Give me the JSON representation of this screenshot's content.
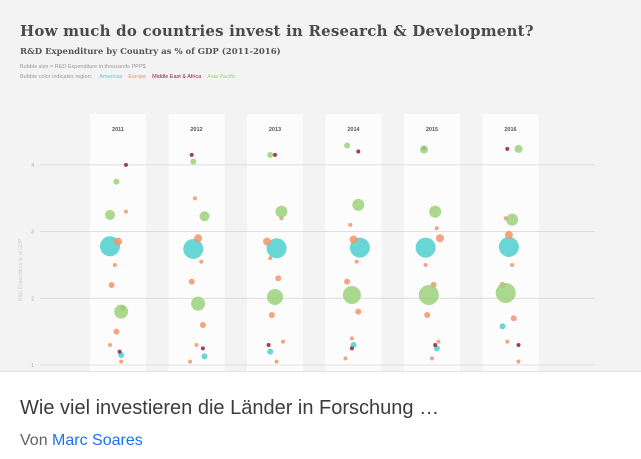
{
  "card": {
    "title": "Wie viel investieren die Länder in Forschung …",
    "author_prefix": "Von",
    "author_name": "Marc Soares"
  },
  "chart_data": {
    "type": "scatter",
    "title": "How much do countries invest in Research & Development?",
    "subtitle": "R&D Expenditure by Country as % of GDP (2011-2016)",
    "note": "Bubble size = R&D Expenditure in thousands PPP$",
    "legend_label": "Bubble color indicates region:",
    "ylabel": "R&D Expenditure % of GDP",
    "categories": [
      "2011",
      "2012",
      "2013",
      "2014",
      "2015",
      "2016"
    ],
    "y_ticks": [
      1,
      2,
      3,
      4
    ],
    "ylim": [
      0.9,
      4.6
    ],
    "grid": true,
    "regions": [
      {
        "name": "Americas",
        "color": "#4fcfcf"
      },
      {
        "name": "Europe",
        "color": "#f0956a"
      },
      {
        "name": "Middle East & Africa",
        "color": "#8b1e3f"
      },
      {
        "name": "Asia Pacific",
        "color": "#9bd17a"
      }
    ],
    "series": [
      {
        "name": "Americas",
        "points": [
          {
            "x": "2011",
            "y": 2.78,
            "size": 10
          },
          {
            "x": "2011",
            "y": 1.15,
            "size": 3
          },
          {
            "x": "2012",
            "y": 2.74,
            "size": 10
          },
          {
            "x": "2012",
            "y": 1.13,
            "size": 3
          },
          {
            "x": "2013",
            "y": 2.75,
            "size": 10
          },
          {
            "x": "2013",
            "y": 1.2,
            "size": 3
          },
          {
            "x": "2014",
            "y": 2.76,
            "size": 10
          },
          {
            "x": "2014",
            "y": 1.3,
            "size": 3
          },
          {
            "x": "2015",
            "y": 2.76,
            "size": 10
          },
          {
            "x": "2015",
            "y": 1.25,
            "size": 3
          },
          {
            "x": "2016",
            "y": 2.77,
            "size": 10
          },
          {
            "x": "2016",
            "y": 1.58,
            "size": 3
          }
        ]
      },
      {
        "name": "Europe",
        "points": [
          {
            "x": "2011",
            "y": 2.85,
            "size": 4
          },
          {
            "x": "2011",
            "y": 2.2,
            "size": 3
          },
          {
            "x": "2011",
            "y": 1.85,
            "size": 3
          },
          {
            "x": "2011",
            "y": 1.5,
            "size": 3
          },
          {
            "x": "2011",
            "y": 1.3,
            "size": 2
          },
          {
            "x": "2011",
            "y": 1.05,
            "size": 2
          },
          {
            "x": "2011",
            "y": 2.5,
            "size": 2
          },
          {
            "x": "2011",
            "y": 3.3,
            "size": 2
          },
          {
            "x": "2012",
            "y": 2.9,
            "size": 4
          },
          {
            "x": "2012",
            "y": 2.25,
            "size": 3
          },
          {
            "x": "2012",
            "y": 1.6,
            "size": 3
          },
          {
            "x": "2012",
            "y": 1.3,
            "size": 2
          },
          {
            "x": "2012",
            "y": 1.05,
            "size": 2
          },
          {
            "x": "2012",
            "y": 2.55,
            "size": 2
          },
          {
            "x": "2012",
            "y": 3.5,
            "size": 2
          },
          {
            "x": "2013",
            "y": 2.85,
            "size": 4
          },
          {
            "x": "2013",
            "y": 2.3,
            "size": 3
          },
          {
            "x": "2013",
            "y": 1.75,
            "size": 3
          },
          {
            "x": "2013",
            "y": 1.35,
            "size": 2
          },
          {
            "x": "2013",
            "y": 1.05,
            "size": 2
          },
          {
            "x": "2013",
            "y": 2.6,
            "size": 2
          },
          {
            "x": "2013",
            "y": 3.2,
            "size": 2
          },
          {
            "x": "2014",
            "y": 2.88,
            "size": 4
          },
          {
            "x": "2014",
            "y": 2.25,
            "size": 3
          },
          {
            "x": "2014",
            "y": 1.8,
            "size": 3
          },
          {
            "x": "2014",
            "y": 1.4,
            "size": 2
          },
          {
            "x": "2014",
            "y": 1.1,
            "size": 2
          },
          {
            "x": "2014",
            "y": 2.55,
            "size": 2
          },
          {
            "x": "2014",
            "y": 3.1,
            "size": 2
          },
          {
            "x": "2015",
            "y": 2.9,
            "size": 4
          },
          {
            "x": "2015",
            "y": 2.2,
            "size": 3
          },
          {
            "x": "2015",
            "y": 1.75,
            "size": 3
          },
          {
            "x": "2015",
            "y": 1.35,
            "size": 2
          },
          {
            "x": "2015",
            "y": 1.1,
            "size": 2
          },
          {
            "x": "2015",
            "y": 2.5,
            "size": 2
          },
          {
            "x": "2015",
            "y": 3.05,
            "size": 2
          },
          {
            "x": "2016",
            "y": 2.95,
            "size": 4
          },
          {
            "x": "2016",
            "y": 2.2,
            "size": 3
          },
          {
            "x": "2016",
            "y": 1.7,
            "size": 3
          },
          {
            "x": "2016",
            "y": 1.35,
            "size": 2
          },
          {
            "x": "2016",
            "y": 1.05,
            "size": 2
          },
          {
            "x": "2016",
            "y": 2.5,
            "size": 2
          },
          {
            "x": "2016",
            "y": 3.2,
            "size": 2
          }
        ]
      },
      {
        "name": "Middle East & Africa",
        "points": [
          {
            "x": "2011",
            "y": 4.0,
            "size": 2
          },
          {
            "x": "2011",
            "y": 1.2,
            "size": 2
          },
          {
            "x": "2012",
            "y": 4.15,
            "size": 2
          },
          {
            "x": "2012",
            "y": 1.25,
            "size": 2
          },
          {
            "x": "2013",
            "y": 4.15,
            "size": 2
          },
          {
            "x": "2013",
            "y": 1.3,
            "size": 2
          },
          {
            "x": "2014",
            "y": 4.2,
            "size": 2
          },
          {
            "x": "2014",
            "y": 1.25,
            "size": 2
          },
          {
            "x": "2015",
            "y": 4.25,
            "size": 2
          },
          {
            "x": "2015",
            "y": 1.3,
            "size": 2
          },
          {
            "x": "2016",
            "y": 4.24,
            "size": 2
          },
          {
            "x": "2016",
            "y": 1.3,
            "size": 2
          }
        ]
      },
      {
        "name": "Asia Pacific",
        "points": [
          {
            "x": "2011",
            "y": 3.75,
            "size": 3
          },
          {
            "x": "2011",
            "y": 3.25,
            "size": 5
          },
          {
            "x": "2011",
            "y": 1.8,
            "size": 7
          },
          {
            "x": "2012",
            "y": 4.05,
            "size": 3
          },
          {
            "x": "2012",
            "y": 3.23,
            "size": 5
          },
          {
            "x": "2012",
            "y": 1.92,
            "size": 7
          },
          {
            "x": "2013",
            "y": 4.15,
            "size": 3
          },
          {
            "x": "2013",
            "y": 3.3,
            "size": 6
          },
          {
            "x": "2013",
            "y": 2.02,
            "size": 8
          },
          {
            "x": "2014",
            "y": 4.29,
            "size": 3
          },
          {
            "x": "2014",
            "y": 3.4,
            "size": 6
          },
          {
            "x": "2014",
            "y": 2.05,
            "size": 9
          },
          {
            "x": "2015",
            "y": 4.23,
            "size": 4
          },
          {
            "x": "2015",
            "y": 3.3,
            "size": 6
          },
          {
            "x": "2015",
            "y": 2.05,
            "size": 10
          },
          {
            "x": "2016",
            "y": 4.24,
            "size": 4
          },
          {
            "x": "2016",
            "y": 3.18,
            "size": 6
          },
          {
            "x": "2016",
            "y": 2.08,
            "size": 10
          }
        ]
      }
    ]
  }
}
